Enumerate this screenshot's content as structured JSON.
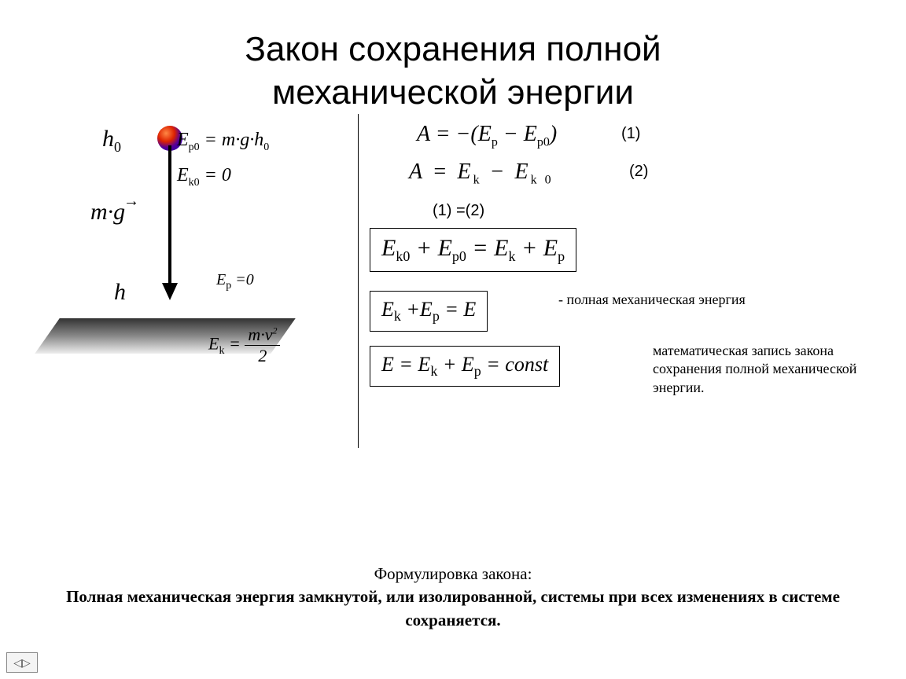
{
  "title_line1": "Закон сохранения полной",
  "title_line2": "механической энергии",
  "diagram": {
    "h0": "h",
    "h0_sub": "0",
    "mg": "m·g",
    "h": "h",
    "ep0_eq": "E",
    "ep0_sub": "p0",
    "ep0_rhs": " = m·g·h",
    "ep0_rhs_sub": "0",
    "ek0_eq": "E",
    "ek0_sub": "k0",
    "ek0_rhs": " = 0",
    "ep_eq": "E",
    "ep_sub": "p",
    "ep_rhs": " =0",
    "ek_lhs": "E",
    "ek_sub": "k",
    "ek_num": "m·v",
    "ek_num_sup": "2",
    "ek_den": "2"
  },
  "right": {
    "eq1": "A = −(E",
    "eq1_sub1": "p",
    "eq1_mid": " − E",
    "eq1_sub2": "p0",
    "eq1_end": ")",
    "n1": "(1)",
    "eq2_a": "A",
    "eq2_eq": " = ",
    "eq2_ek": "E",
    "eq2_eksub": "k",
    "eq2_minus": " − ",
    "eq2_ek0": "E",
    "eq2_ek0sub": "k 0",
    "n2": "(2)",
    "eq12": "(1) =(2)",
    "box1_a": "E",
    "box1_as": "k0",
    "box1_p": " + E",
    "box1_ps": "p0",
    "box1_eq": " = E",
    "box1_eks": "k",
    "box1_p2": " + E",
    "box1_p2s": "p",
    "box2_a": "E",
    "box2_as": "k",
    "box2_p": " +E",
    "box2_ps": "p",
    "box2_eq": " = E",
    "box3_a": "E = E",
    "box3_as": "k",
    "box3_p": " + E",
    "box3_ps": "p",
    "box3_eq": " = const",
    "annot2": "- полная механическая энергия",
    "annot3": "математическая запись закона сохранения полной механической энергии."
  },
  "footer": {
    "heading": "Формулировка закона:",
    "statement": "Полная механическая энергия замкнутой, или изолированной, системы при всех изменениях в системе сохраняется."
  },
  "colors": {
    "text": "#000000",
    "bg": "#ffffff",
    "ball_grad_a": "#ff8844",
    "ball_grad_b": "#2200aa"
  }
}
